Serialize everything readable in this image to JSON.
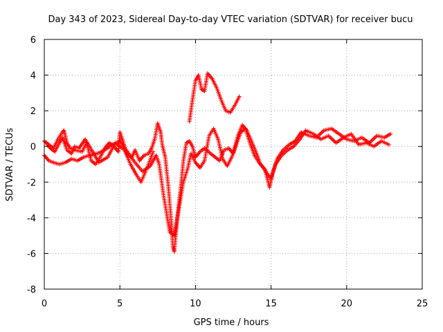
{
  "chart_data": {
    "type": "scatter",
    "title": "Day 343 of 2023, Sidereal Day-to-day VTEC variation (SDTVAR) for receiver bucu",
    "xlabel": "GPS time / hours",
    "ylabel": "SDTVAR / TECUs",
    "xlim": [
      0,
      25
    ],
    "ylim": [
      -8,
      6
    ],
    "xticks": [
      0,
      5,
      10,
      15,
      20,
      25
    ],
    "yticks": [
      -8,
      -6,
      -4,
      -2,
      0,
      2,
      4,
      6
    ],
    "xtick_labels": [
      "0",
      "5",
      "10",
      "15",
      "20",
      "25"
    ],
    "ytick_labels": [
      "-8",
      "-6",
      "-4",
      "-2",
      "0",
      "2",
      "4",
      "6"
    ],
    "grid": true,
    "marker": "+",
    "color": "#ff0000",
    "series": [
      {
        "name": "track-upper",
        "points": [
          [
            0,
            0.3
          ],
          [
            0.3,
            0.1
          ],
          [
            0.6,
            -0.1
          ],
          [
            0.9,
            0.4
          ],
          [
            1.2,
            0.8
          ],
          [
            1.3,
            0.9
          ],
          [
            1.5,
            0.2
          ],
          [
            1.7,
            -0.1
          ],
          [
            2.0,
            -0.2
          ],
          [
            2.5,
            -0.3
          ],
          [
            2.8,
            0.2
          ],
          [
            3.1,
            -0.8
          ],
          [
            3.4,
            -1.0
          ],
          [
            3.7,
            -0.6
          ],
          [
            4.0,
            -0.1
          ],
          [
            4.3,
            0.2
          ],
          [
            4.6,
            0.0
          ],
          [
            4.9,
            -0.3
          ],
          [
            5.0,
            0.8
          ],
          [
            5.2,
            0.3
          ],
          [
            5.5,
            -0.5
          ],
          [
            5.8,
            -0.6
          ],
          [
            6.0,
            -0.2
          ],
          [
            6.3,
            -0.8
          ],
          [
            6.6,
            -0.5
          ],
          [
            6.9,
            -0.4
          ],
          [
            7.1,
            -0.1
          ],
          [
            7.3,
            0.4
          ],
          [
            7.5,
            1.3
          ],
          [
            7.7,
            0.8
          ],
          [
            7.8,
            0.1
          ],
          [
            8.0,
            -0.6
          ],
          [
            8.2,
            -2.2
          ],
          [
            8.4,
            -4.2
          ],
          [
            8.5,
            -5.6
          ],
          [
            8.6,
            -5.9
          ],
          [
            8.8,
            -4.0
          ],
          [
            9.0,
            -2.5
          ],
          [
            9.2,
            -0.8
          ],
          [
            9.4,
            0.2
          ],
          [
            9.6,
            0.3
          ],
          [
            9.8,
            0.0
          ],
          [
            10.0,
            -0.6
          ],
          [
            10.3,
            -0.3
          ],
          [
            10.6,
            -0.1
          ],
          [
            11.0,
            -0.4
          ],
          [
            11.3,
            -0.6
          ],
          [
            11.6,
            -0.8
          ],
          [
            11.9,
            -0.2
          ],
          [
            12.2,
            -0.1
          ],
          [
            12.5,
            -0.4
          ],
          [
            12.8,
            0.6
          ],
          [
            13.1,
            1.2
          ],
          [
            13.4,
            0.9
          ],
          [
            13.7,
            0.3
          ],
          [
            14.0,
            -0.3
          ],
          [
            14.3,
            -1.0
          ],
          [
            14.6,
            -1.3
          ],
          [
            14.9,
            -2.3
          ],
          [
            15.1,
            -1.5
          ],
          [
            15.4,
            -0.7
          ],
          [
            15.8,
            -0.2
          ],
          [
            16.2,
            0.1
          ],
          [
            16.6,
            0.3
          ],
          [
            17.0,
            0.8
          ],
          [
            17.5,
            0.6
          ],
          [
            18.0,
            0.5
          ],
          [
            18.5,
            0.9
          ],
          [
            19.0,
            1.0
          ],
          [
            19.5,
            0.7
          ],
          [
            20.0,
            0.4
          ],
          [
            20.5,
            0.3
          ],
          [
            21.0,
            0.5
          ],
          [
            21.5,
            0.2
          ],
          [
            22.0,
            0.6
          ],
          [
            22.5,
            0.5
          ],
          [
            22.9,
            0.7
          ]
        ]
      },
      {
        "name": "track-lower",
        "points": [
          [
            0,
            -0.5
          ],
          [
            0.3,
            -0.8
          ],
          [
            0.6,
            -0.9
          ],
          [
            1.0,
            -1.0
          ],
          [
            1.4,
            -0.9
          ],
          [
            1.8,
            -0.7
          ],
          [
            2.2,
            -0.8
          ],
          [
            2.6,
            -0.6
          ],
          [
            3.0,
            -0.5
          ],
          [
            3.5,
            -0.4
          ],
          [
            4.0,
            -0.2
          ],
          [
            4.5,
            0.1
          ],
          [
            5.0,
            0.3
          ],
          [
            5.5,
            -0.3
          ],
          [
            6.0,
            -0.9
          ],
          [
            6.5,
            -1.4
          ],
          [
            7.0,
            -1.1
          ],
          [
            7.4,
            -0.5
          ],
          [
            7.6,
            -1.0
          ],
          [
            7.9,
            -2.8
          ],
          [
            8.1,
            -3.8
          ],
          [
            8.3,
            -4.8
          ],
          [
            8.6,
            -5.0
          ],
          [
            8.9,
            -3.5
          ],
          [
            9.2,
            -2.0
          ],
          [
            9.5,
            -1.2
          ],
          [
            9.7,
            -0.4
          ],
          [
            10.0,
            -0.9
          ],
          [
            10.3,
            -1.2
          ],
          [
            10.6,
            -0.8
          ],
          [
            10.9,
            0.6
          ],
          [
            11.2,
            1.0
          ],
          [
            11.5,
            0.4
          ],
          [
            11.8,
            -0.7
          ],
          [
            12.1,
            -1.1
          ],
          [
            12.4,
            -0.6
          ],
          [
            12.7,
            0.1
          ],
          [
            13.0,
            0.8
          ],
          [
            13.3,
            1.0
          ],
          [
            13.6,
            0.2
          ],
          [
            13.9,
            -0.5
          ],
          [
            14.2,
            -0.9
          ],
          [
            14.5,
            -1.2
          ],
          [
            14.8,
            -1.6
          ],
          [
            15.0,
            -1.8
          ],
          [
            15.3,
            -1.0
          ],
          [
            15.7,
            -0.5
          ],
          [
            16.1,
            -0.2
          ],
          [
            16.5,
            0.0
          ],
          [
            16.9,
            0.4
          ],
          [
            17.3,
            0.9
          ],
          [
            17.8,
            0.7
          ],
          [
            18.3,
            0.4
          ],
          [
            18.8,
            0.6
          ],
          [
            19.3,
            0.2
          ],
          [
            19.8,
            0.5
          ],
          [
            20.3,
            0.7
          ],
          [
            20.8,
            0.1
          ],
          [
            21.3,
            0.2
          ],
          [
            21.8,
            0.0
          ],
          [
            22.3,
            0.3
          ],
          [
            22.8,
            0.1
          ]
        ]
      },
      {
        "name": "arc-peak",
        "points": [
          [
            9.6,
            1.4
          ],
          [
            9.8,
            2.6
          ],
          [
            10.0,
            3.7
          ],
          [
            10.2,
            4.0
          ],
          [
            10.4,
            3.2
          ],
          [
            10.6,
            3.1
          ],
          [
            10.8,
            4.1
          ],
          [
            11.1,
            3.8
          ],
          [
            11.4,
            3.3
          ],
          [
            11.7,
            2.6
          ],
          [
            12.0,
            2.0
          ],
          [
            12.3,
            1.9
          ],
          [
            12.6,
            2.3
          ],
          [
            12.9,
            2.8
          ]
        ]
      },
      {
        "name": "cluster-early",
        "points": [
          [
            0.2,
            0.1
          ],
          [
            0.4,
            -0.1
          ],
          [
            0.7,
            -0.3
          ],
          [
            1.0,
            0.2
          ],
          [
            1.2,
            0.5
          ],
          [
            1.5,
            -0.2
          ],
          [
            1.8,
            -0.4
          ],
          [
            2.0,
            0.0
          ],
          [
            2.3,
            -0.1
          ],
          [
            2.7,
            0.4
          ],
          [
            3.2,
            -0.3
          ],
          [
            3.6,
            -0.9
          ],
          [
            4.2,
            -0.6
          ],
          [
            4.7,
            0.2
          ],
          [
            5.3,
            -0.2
          ],
          [
            5.7,
            -1.0
          ],
          [
            6.1,
            -1.6
          ],
          [
            6.4,
            -2.0
          ],
          [
            6.8,
            -1.2
          ],
          [
            7.2,
            -0.3
          ]
        ]
      }
    ]
  }
}
